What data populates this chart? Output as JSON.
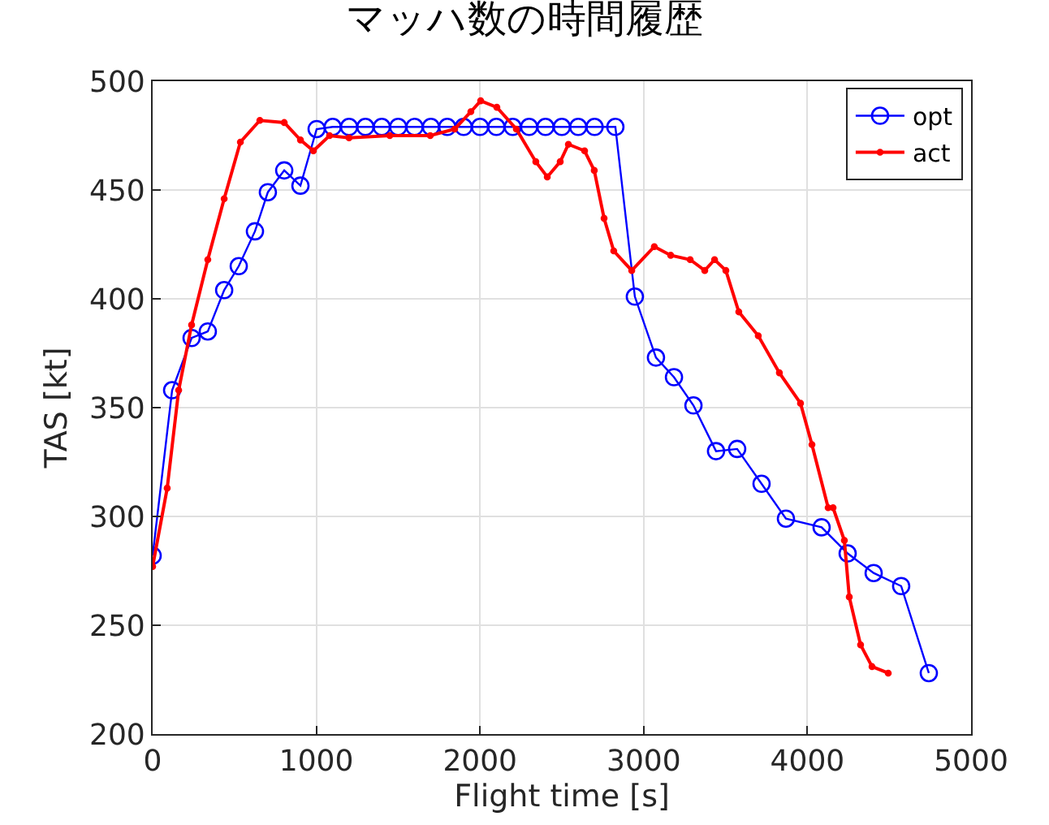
{
  "chart_data": {
    "type": "line",
    "title": "マッハ数の時間履歴",
    "xlabel": "Flight time [s]",
    "ylabel": "TAS [kt]",
    "xlim": [
      0,
      5000
    ],
    "xticks": [
      0,
      1000,
      2000,
      3000,
      4000,
      5000
    ],
    "ylim": [
      200,
      500
    ],
    "yticks": [
      200,
      250,
      300,
      350,
      400,
      450,
      500
    ],
    "grid": true,
    "legend": "top right",
    "line_style": "solid",
    "series": [
      {
        "name": "opt",
        "color": "#0000ff",
        "marker": "circle",
        "x": [
          0,
          119,
          238,
          337,
          437,
          526,
          625,
          704,
          804,
          903,
          1002,
          1100,
          1200,
          1300,
          1400,
          1500,
          1600,
          1700,
          1800,
          1900,
          2000,
          2100,
          2200,
          2300,
          2400,
          2500,
          2600,
          2700,
          2827,
          2946,
          3075,
          3185,
          3304,
          3442,
          3571,
          3720,
          3869,
          4087,
          4246,
          4405,
          4573,
          4742
        ],
        "values": [
          282,
          358,
          382,
          385,
          404,
          415,
          431,
          449,
          459,
          452,
          478,
          479,
          479,
          479,
          479,
          479,
          479,
          479,
          479,
          479,
          479,
          479,
          479,
          479,
          479,
          479,
          479,
          479,
          479,
          401,
          373,
          364,
          351,
          330,
          331,
          315,
          299,
          295,
          283,
          274,
          268,
          228
        ]
      },
      {
        "name": "act",
        "color": "#ff0000",
        "marker": "circle",
        "x": [
          0,
          89,
          159,
          238,
          337,
          437,
          536,
          655,
          804,
          903,
          982,
          1081,
          1200,
          1449,
          1696,
          1845,
          1944,
          2004,
          2103,
          2222,
          2341,
          2411,
          2490,
          2540,
          2639,
          2698,
          2758,
          2817,
          2927,
          3065,
          3165,
          3284,
          3373,
          3433,
          3502,
          3581,
          3700,
          3829,
          3958,
          4028,
          4127,
          4157,
          4226,
          4256,
          4325,
          4395,
          4494
        ],
        "values": [
          277,
          313,
          358,
          388,
          418,
          446,
          472,
          482,
          481,
          473,
          468,
          475,
          474,
          475,
          475,
          478,
          486,
          491,
          488,
          478,
          463,
          456,
          463,
          471,
          468,
          459,
          437,
          422,
          413,
          424,
          420,
          418,
          413,
          418,
          413,
          394,
          383,
          366,
          352,
          333,
          304,
          304,
          289,
          263,
          241,
          231,
          228
        ]
      }
    ]
  }
}
